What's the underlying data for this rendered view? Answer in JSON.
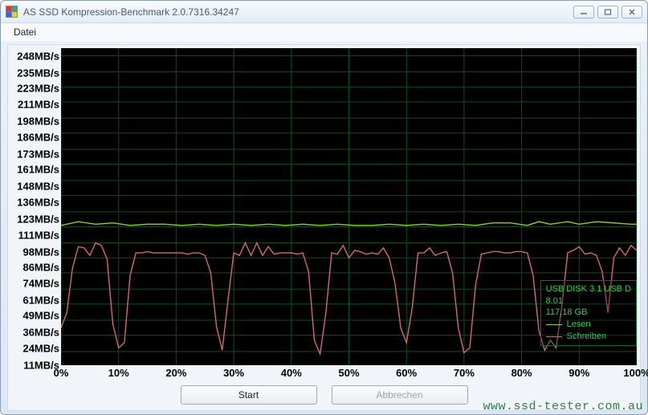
{
  "window": {
    "title": "AS SSD Kompression-Benchmark 2.0.7316.34247"
  },
  "menu": {
    "items": [
      "Datei"
    ]
  },
  "chart": {
    "type": "line",
    "background_color": "#000000",
    "grid_color": "#0c4f24",
    "axis_color": "#0c4f24",
    "y": {
      "min": 0,
      "max": 254,
      "ticks": [
        11,
        24,
        36,
        49,
        61,
        74,
        86,
        98,
        111,
        123,
        136,
        148,
        161,
        173,
        186,
        198,
        211,
        223,
        235,
        248
      ],
      "tick_labels": [
        "11MB/s",
        "24MB/s",
        "36MB/s",
        "49MB/s",
        "61MB/s",
        "74MB/s",
        "86MB/s",
        "98MB/s",
        "111MB/s",
        "123MB/s",
        "136MB/s",
        "148MB/s",
        "161MB/s",
        "173MB/s",
        "186MB/s",
        "198MB/s",
        "211MB/s",
        "223MB/s",
        "235MB/s",
        "248MB/s"
      ]
    },
    "x": {
      "min": 0,
      "max": 100,
      "ticks": [
        0,
        10,
        20,
        30,
        40,
        50,
        60,
        70,
        80,
        90,
        100
      ],
      "tick_labels": [
        "0%",
        "10%",
        "20%",
        "30%",
        "40%",
        "50%",
        "60%",
        "70%",
        "80%",
        "90%",
        "100%"
      ]
    },
    "series": [
      {
        "name": "Lesen",
        "color": "#8ecf2b",
        "width": 1.4,
        "points": [
          [
            0,
            112
          ],
          [
            3,
            115
          ],
          [
            6,
            113
          ],
          [
            9,
            114
          ],
          [
            12,
            112
          ],
          [
            15,
            113
          ],
          [
            18,
            113
          ],
          [
            21,
            112
          ],
          [
            24,
            113
          ],
          [
            27,
            112
          ],
          [
            30,
            113
          ],
          [
            33,
            112
          ],
          [
            36,
            113
          ],
          [
            39,
            112
          ],
          [
            42,
            113
          ],
          [
            45,
            112
          ],
          [
            48,
            113
          ],
          [
            51,
            112
          ],
          [
            54,
            112
          ],
          [
            57,
            113
          ],
          [
            60,
            112
          ],
          [
            63,
            113
          ],
          [
            66,
            112
          ],
          [
            69,
            113
          ],
          [
            72,
            112
          ],
          [
            75,
            114
          ],
          [
            78,
            114
          ],
          [
            81,
            112
          ],
          [
            83,
            115
          ],
          [
            85,
            113
          ],
          [
            88,
            115
          ],
          [
            90,
            113
          ],
          [
            93,
            115
          ],
          [
            96,
            114
          ],
          [
            99,
            113
          ],
          [
            100,
            113
          ]
        ]
      },
      {
        "name": "Schreiben",
        "color": "#d46a6a",
        "width": 1.4,
        "points": [
          [
            0,
            30
          ],
          [
            1,
            42
          ],
          [
            2,
            78
          ],
          [
            3,
            95
          ],
          [
            4,
            94
          ],
          [
            5,
            88
          ],
          [
            6,
            98
          ],
          [
            7,
            96
          ],
          [
            8,
            85
          ],
          [
            9,
            33
          ],
          [
            10,
            14
          ],
          [
            11,
            18
          ],
          [
            12,
            72
          ],
          [
            13,
            90
          ],
          [
            14,
            90
          ],
          [
            15,
            91
          ],
          [
            16,
            90
          ],
          [
            17,
            90
          ],
          [
            18,
            90
          ],
          [
            19,
            90
          ],
          [
            20,
            90
          ],
          [
            21,
            90
          ],
          [
            22,
            89
          ],
          [
            23,
            90
          ],
          [
            24,
            90
          ],
          [
            25,
            88
          ],
          [
            26,
            74
          ],
          [
            27,
            31
          ],
          [
            28,
            12
          ],
          [
            29,
            52
          ],
          [
            30,
            90
          ],
          [
            31,
            88
          ],
          [
            32,
            98
          ],
          [
            33,
            88
          ],
          [
            34,
            98
          ],
          [
            35,
            88
          ],
          [
            36,
            95
          ],
          [
            37,
            89
          ],
          [
            38,
            90
          ],
          [
            39,
            90
          ],
          [
            40,
            90
          ],
          [
            41,
            89
          ],
          [
            42,
            90
          ],
          [
            43,
            75
          ],
          [
            44,
            20
          ],
          [
            45,
            9
          ],
          [
            46,
            42
          ],
          [
            47,
            90
          ],
          [
            48,
            89
          ],
          [
            49,
            96
          ],
          [
            50,
            86
          ],
          [
            51,
            92
          ],
          [
            52,
            91
          ],
          [
            53,
            89
          ],
          [
            54,
            90
          ],
          [
            55,
            89
          ],
          [
            56,
            94
          ],
          [
            57,
            86
          ],
          [
            58,
            66
          ],
          [
            59,
            30
          ],
          [
            60,
            18
          ],
          [
            61,
            46
          ],
          [
            62,
            90
          ],
          [
            63,
            90
          ],
          [
            64,
            94
          ],
          [
            65,
            88
          ],
          [
            66,
            90
          ],
          [
            67,
            91
          ],
          [
            68,
            74
          ],
          [
            69,
            30
          ],
          [
            70,
            10
          ],
          [
            71,
            14
          ],
          [
            72,
            64
          ],
          [
            73,
            89
          ],
          [
            74,
            90
          ],
          [
            75,
            91
          ],
          [
            76,
            91
          ],
          [
            77,
            90
          ],
          [
            78,
            90
          ],
          [
            79,
            91
          ],
          [
            80,
            91
          ],
          [
            81,
            90
          ],
          [
            82,
            72
          ],
          [
            83,
            28
          ],
          [
            84,
            12
          ],
          [
            85,
            20
          ],
          [
            86,
            14
          ],
          [
            87,
            48
          ],
          [
            88,
            90
          ],
          [
            89,
            92
          ],
          [
            90,
            95
          ],
          [
            91,
            89
          ],
          [
            92,
            90
          ],
          [
            93,
            88
          ],
          [
            94,
            75
          ],
          [
            95,
            42
          ],
          [
            96,
            86
          ],
          [
            97,
            94
          ],
          [
            98,
            88
          ],
          [
            99,
            96
          ],
          [
            100,
            92
          ]
        ]
      }
    ]
  },
  "info_box": {
    "device": "USB DISK 3.1 USB D",
    "firmware": "8.01",
    "capacity": "117,18 GB",
    "border_color": "#0f6b2c",
    "text_color": "#2ad24a",
    "legend": [
      {
        "label": "Lesen",
        "color": "#8ecf2b"
      },
      {
        "label": "Schreiben",
        "color": "#d46a6a"
      }
    ]
  },
  "buttons": {
    "start": "Start",
    "abort": "Abbrechen"
  },
  "watermark": "www.ssd-tester.com.au"
}
